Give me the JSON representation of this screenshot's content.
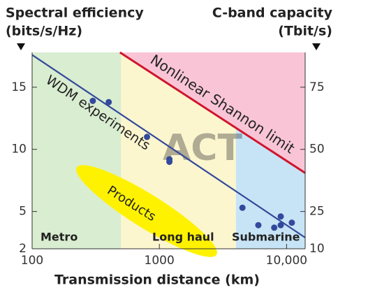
{
  "chart_data": {
    "type": "scatter",
    "y_label_lines": [
      "Spectral efficiency",
      "(bits/s/Hz)"
    ],
    "y2_label_lines": [
      "C-band capacity",
      "(Tbit/s)"
    ],
    "x_label": "Transmission distance (km)",
    "watermark": "ACT",
    "x_scale": "log",
    "xlim": [
      100,
      14000
    ],
    "xticks": [
      100,
      1000,
      {
        "value": 10000,
        "label": "10,000"
      }
    ],
    "ylim": [
      2,
      17.8
    ],
    "yticks": [
      2,
      5,
      10,
      15
    ],
    "y2lim": [
      10,
      89
    ],
    "y2ticks": [
      10,
      25,
      50,
      75
    ],
    "regions": [
      {
        "label": "Metro",
        "from": 100,
        "to": 500,
        "color": "#d9edd0"
      },
      {
        "label": "Long haul",
        "from": 500,
        "to": 4000,
        "color": "#fcf6cf"
      },
      {
        "label": "Submarine",
        "from": 4000,
        "to": 14000,
        "color": "#c7e4f6"
      }
    ],
    "products_label": "Products",
    "series": [
      {
        "name": "WDM experiments",
        "color": "#33499c",
        "mode": "markers",
        "x": [
          300,
          400,
          800,
          1200,
          1200,
          4500,
          6000,
          8000,
          9000,
          9000,
          11000
        ],
        "values": [
          13.9,
          13.8,
          11.0,
          9.2,
          9.0,
          5.3,
          3.9,
          3.7,
          4.6,
          3.9,
          4.1
        ],
        "fit": {
          "x": [
            100,
            14000
          ],
          "values": [
            17.6,
            2.9
          ]
        }
      },
      {
        "name": "Nonlinear Shannon limit",
        "color": "#d0152d",
        "mode": "line",
        "fill": "#f9c5d6",
        "x": [
          490,
          14000
        ],
        "values": [
          17.8,
          8.1
        ]
      }
    ]
  }
}
